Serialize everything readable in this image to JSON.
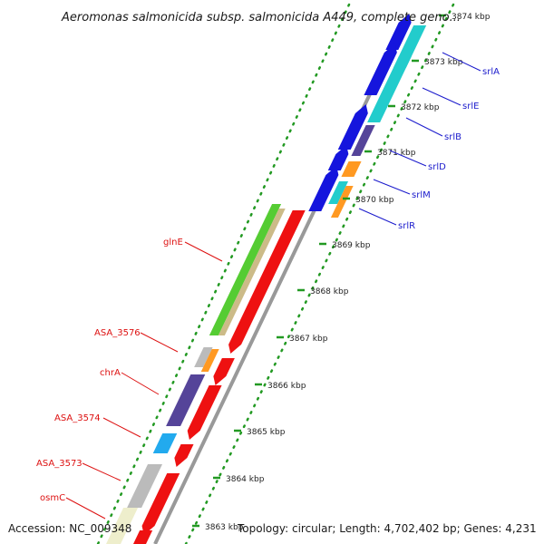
{
  "title": "Aeromonas salmonicida subsp. salmonicida A449, complete geno...",
  "footer": {
    "accession": "Accession: NC_009348",
    "summary": "Topology: circular; Length: 4,702,402 bp; Genes: 4,231"
  },
  "ticks": [
    "3863 kbp",
    "3864 kbp",
    "3865 kbp",
    "3866 kbp",
    "3867 kbp",
    "3868 kbp",
    "3869 kbp",
    "3870 kbp",
    "3871 kbp",
    "3872 kbp",
    "3873 kbp",
    "3874 kbp"
  ],
  "genes_right": [
    "srlA",
    "srlE",
    "srlB",
    "srlD",
    "srlM",
    "srlR"
  ],
  "genes_left": [
    "glnE",
    "ASA_3576",
    "chrA",
    "ASA_3574",
    "ASA_3573",
    "osmC"
  ],
  "colors": {
    "label_right": "#1a1acc",
    "label_left": "#dd1111",
    "backbone": "#999999",
    "tick_dots": "#229922",
    "forward_cds": "#1515dd",
    "reverse_cds": "#ee1111",
    "teal": "#22cccc",
    "orange": "#ff9922",
    "green": "#55cc33",
    "tan": "#ccbb88",
    "slate": "#554499",
    "cyan": "#22aaee",
    "grey": "#bbbbbb"
  }
}
